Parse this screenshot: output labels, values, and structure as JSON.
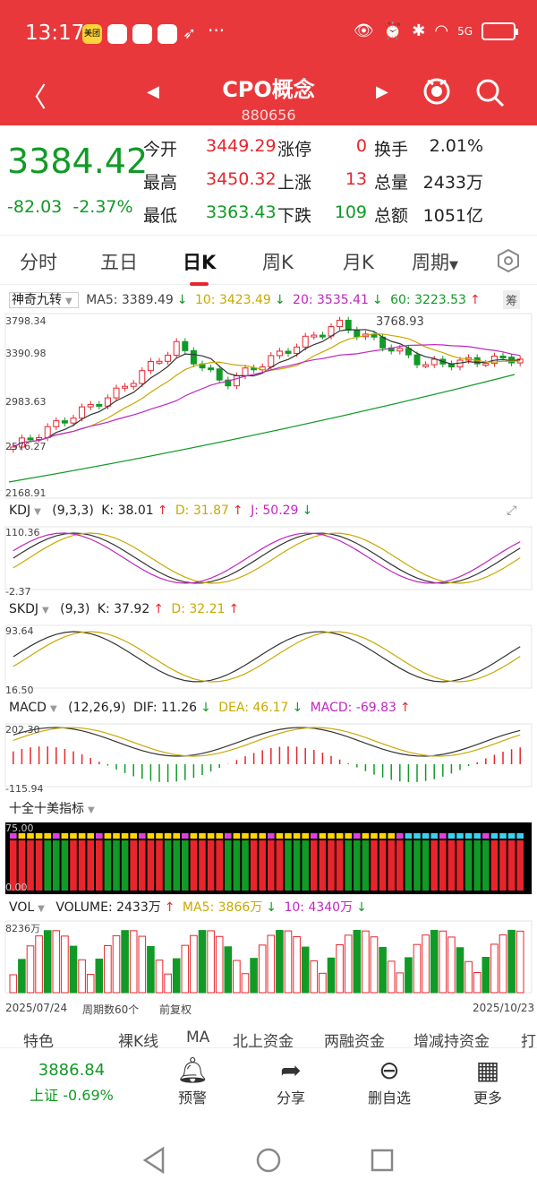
{
  "status": {
    "time": "13:17",
    "app1": "美团",
    "network": "5G"
  },
  "header": {
    "name": "CPO概念",
    "code": "880656",
    "back_icon": "back-arrow",
    "prev_icon": "left-triangle",
    "next_icon": "right-triangle",
    "search_icon": "search"
  },
  "quote": {
    "price": "3384.42",
    "change": "-82.03",
    "pct": "-2.37%",
    "open_l": "今开",
    "open": "3449.29",
    "limitup_l": "涨停",
    "limitup": "0",
    "turn_l": "换手",
    "turn": "2.01%",
    "high_l": "最高",
    "high": "3450.32",
    "up_l": "上涨",
    "up": "13",
    "vol_l": "总量",
    "vol": "2433万",
    "low_l": "最低",
    "low": "3363.43",
    "down_l": "下跌",
    "down": "109",
    "amt_l": "总额",
    "amt": "1051亿"
  },
  "tabs": [
    "分时",
    "五日",
    "日K",
    "周K",
    "月K",
    "周期"
  ],
  "ind_main": {
    "name": "神奇九转",
    "ma5": "MA5: 3389.49",
    "ma10": "10: 3423.49",
    "ma20": "20: 3535.41",
    "ma60": "60: 3223.53",
    "chip": "筹",
    "y": [
      "3798.34",
      "3390.98",
      "2983.63",
      "2576.27",
      "2168.91"
    ],
    "peak": "3768.93"
  },
  "kdj": {
    "name": "KDJ",
    "params": "(9,3,3)",
    "k": "K: 38.01",
    "d": "D: 31.87",
    "j": "J: 50.29",
    "y": [
      "110.36",
      "-2.37"
    ]
  },
  "skdj": {
    "name": "SKDJ",
    "params": "(9,3)",
    "k": "K: 37.92",
    "d": "D: 32.21",
    "y": [
      "93.64",
      "16.50"
    ]
  },
  "macd": {
    "name": "MACD",
    "params": "(12,26,9)",
    "dif": "DIF: 11.26",
    "dea": "DEA: 46.17",
    "macd": "MACD: -69.83",
    "y": [
      "202.30",
      "-115.94"
    ]
  },
  "ten": {
    "name": "十全十美指标",
    "y": [
      "75.00",
      "0.00"
    ]
  },
  "vol": {
    "name": "VOL",
    "volume": "VOLUME: 2433万",
    "ma5": "MA5: 3866万",
    "ma10": "10: 4340万",
    "y": [
      "8236万"
    ]
  },
  "dates": {
    "start": "2025/07/24",
    "count": "周期数60个",
    "adj": "前复权",
    "end": "2025/10/23"
  },
  "bottom_tabs": [
    "特色",
    "裸K线",
    "MA",
    "北上资金",
    "两融资金",
    "增减持资金",
    "打"
  ],
  "footer": {
    "index_val": "3886.84",
    "index_name": "上证",
    "index_pct": "-0.69%",
    "items": [
      "预警",
      "分享",
      "删自选",
      "更多"
    ]
  },
  "colors": {
    "accent": "#e8383b",
    "up": "#e8252c",
    "down": "#119a26"
  }
}
